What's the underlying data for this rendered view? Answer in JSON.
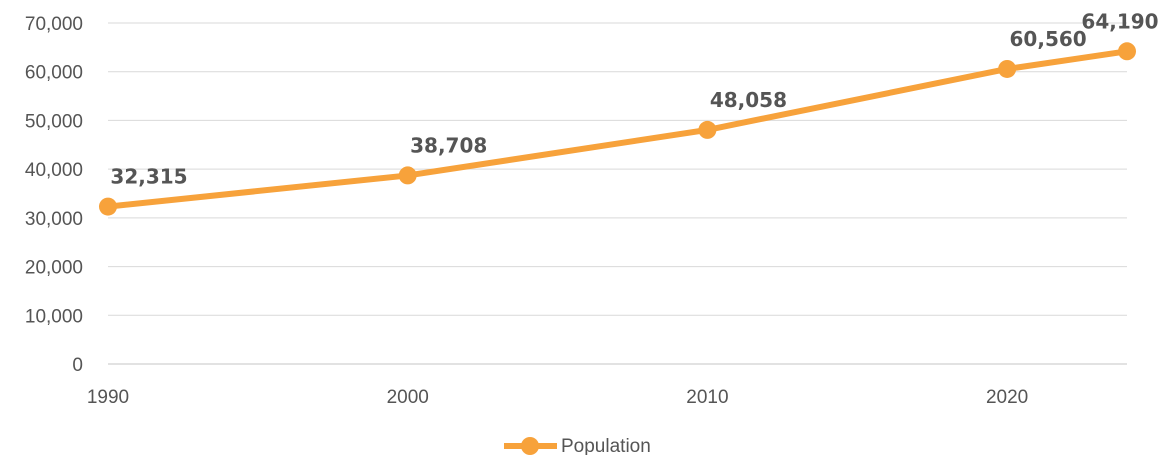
{
  "chart_data": {
    "type": "line",
    "x": [
      1990,
      2000,
      2010,
      2020,
      2024
    ],
    "series": [
      {
        "name": "Population",
        "values": [
          32315,
          38708,
          48058,
          60560,
          64190
        ],
        "data_labels": [
          "32,315",
          "38,708",
          "48,058",
          "60,560",
          "64,190"
        ]
      }
    ],
    "xlim": [
      1990,
      2024
    ],
    "ylim": [
      0,
      70000
    ],
    "x_ticks": [
      "1990",
      "2000",
      "2010",
      "2020"
    ],
    "y_ticks": [
      "0",
      "10,000",
      "20,000",
      "30,000",
      "40,000",
      "50,000",
      "60,000",
      "70,000"
    ],
    "legend": {
      "label": "Population",
      "placement": "bottom"
    },
    "grid": true,
    "colors": {
      "series": "#F7A23B",
      "grid": "#d9d9d9",
      "text": "#555555"
    }
  }
}
